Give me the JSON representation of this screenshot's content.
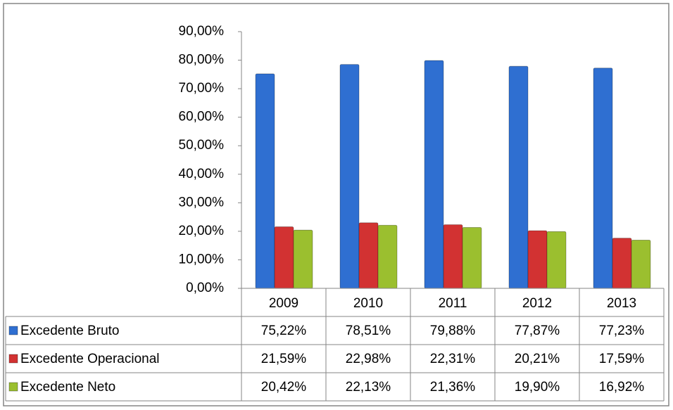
{
  "chart_data": {
    "type": "bar",
    "categories": [
      "2009",
      "2010",
      "2011",
      "2012",
      "2013"
    ],
    "series": [
      {
        "name": "Excedente Bruto",
        "color": "#2f6fd1",
        "values": [
          75.22,
          78.51,
          79.88,
          77.87,
          77.23
        ],
        "value_labels": [
          "75,22%",
          "78,51%",
          "79,88%",
          "77,87%",
          "77,23%"
        ]
      },
      {
        "name": "Excedente Operacional",
        "color": "#d23232",
        "values": [
          21.59,
          22.98,
          22.31,
          20.21,
          17.59
        ],
        "value_labels": [
          "21,59%",
          "22,98%",
          "22,31%",
          "20,21%",
          "17,59%"
        ]
      },
      {
        "name": "Excedente Neto",
        "color": "#9bbf2f",
        "values": [
          20.42,
          22.13,
          21.36,
          19.9,
          16.92
        ],
        "value_labels": [
          "20,42%",
          "22,13%",
          "21,36%",
          "19,90%",
          "16,92%"
        ]
      }
    ],
    "ylim": [
      0,
      90
    ],
    "yticks": [
      {
        "value": 0,
        "label": "0,00%"
      },
      {
        "value": 10,
        "label": "10,00%"
      },
      {
        "value": 20,
        "label": "20,00%"
      },
      {
        "value": 30,
        "label": "30,00%"
      },
      {
        "value": 40,
        "label": "40,00%"
      },
      {
        "value": 50,
        "label": "50,00%"
      },
      {
        "value": 60,
        "label": "60,00%"
      },
      {
        "value": 70,
        "label": "70,00%"
      },
      {
        "value": 80,
        "label": "80,00%"
      },
      {
        "value": 90,
        "label": "90,00%"
      }
    ],
    "data_table": true
  }
}
